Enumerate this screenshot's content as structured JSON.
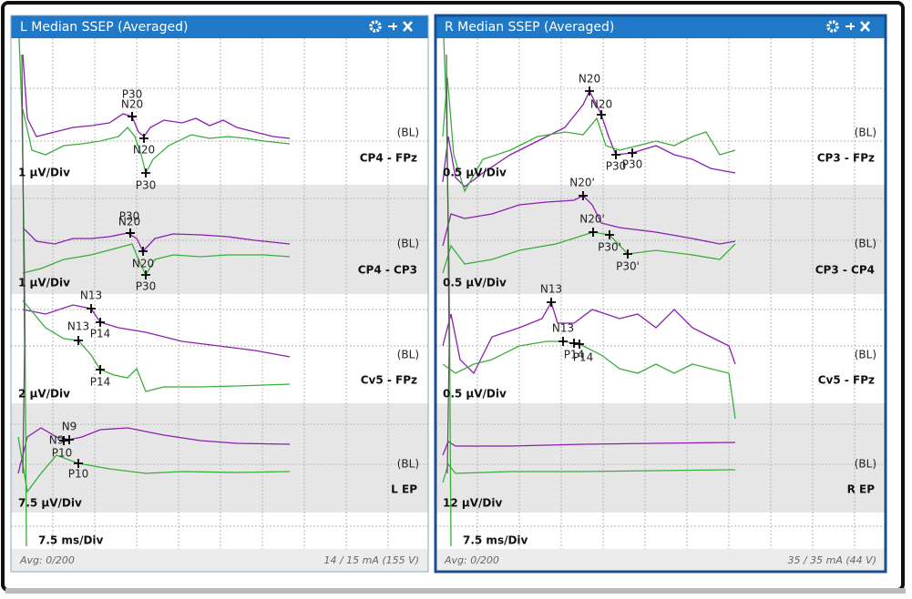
{
  "panels": [
    {
      "title": "L Median SSEP (Averaged)",
      "avg": "Avg: 0/200",
      "stim": "14 / 15 mA (155 V)",
      "timebase": "7.5 ms/Div",
      "channels": [
        {
          "name": "CP4 - FPz",
          "baseline": "(BL)",
          "scale": "1 µV/Div",
          "markers": [
            "N20",
            "N20",
            "P30",
            "P30"
          ]
        },
        {
          "name": "CP4 - CP3",
          "baseline": "(BL)",
          "scale": "1 µV/Div",
          "markers": [
            "N20",
            "N20",
            "P30",
            "P30"
          ]
        },
        {
          "name": "Cv5 - FPz",
          "baseline": "(BL)",
          "scale": "2 µV/Div",
          "markers": [
            "N13",
            "P14",
            "N13",
            "P14"
          ]
        },
        {
          "name": "L EP",
          "baseline": "(BL)",
          "scale": "7.5 µV/Div",
          "markers": [
            "N9",
            "N9",
            "P10",
            "P10"
          ]
        }
      ]
    },
    {
      "title": "R Median SSEP (Averaged)",
      "avg": "Avg: 0/200",
      "stim": "35 / 35 mA (44 V)",
      "timebase": "7.5 ms/Div",
      "channels": [
        {
          "name": "CP3 - FPz",
          "baseline": "(BL)",
          "scale": "0.5 µV/Div",
          "markers": [
            "N20",
            "N20",
            "P30",
            "P30"
          ]
        },
        {
          "name": "CP3 - CP4",
          "baseline": "(BL)",
          "scale": "0.5 µV/Div",
          "markers": [
            "N20'",
            "N20'",
            "P30'",
            "P30'"
          ]
        },
        {
          "name": "Cv5 - FPz",
          "baseline": "(BL)",
          "scale": "0.5 µV/Div",
          "markers": [
            "N13",
            "N13",
            "P14",
            "P14"
          ]
        },
        {
          "name": "R EP",
          "baseline": "(BL)",
          "scale": "12 µV/Div",
          "markers": []
        }
      ]
    }
  ]
}
